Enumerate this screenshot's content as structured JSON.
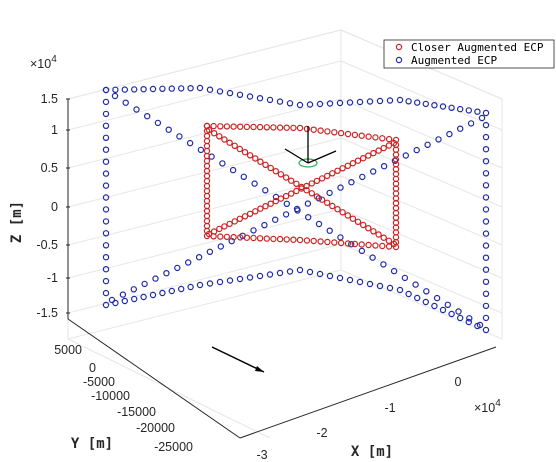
{
  "chart_data": {
    "type": "scatter",
    "projection": "3d",
    "xlabel": "X [m]",
    "ylabel": "Y [m]",
    "zlabel": "Z [m]",
    "x_multiplier": "×10",
    "x_multiplier_exp": "4",
    "z_multiplier": "×10",
    "z_multiplier_exp": "4",
    "xlim": [
      -3,
      1
    ],
    "ylim": [
      -28000,
      7000
    ],
    "zlim": [
      -1.7,
      1.7
    ],
    "x_ticks": [
      "-3",
      "-2",
      "-1",
      "0"
    ],
    "y_ticks": [
      "-25000",
      "-20000",
      "-15000",
      "-10000",
      "-5000",
      "0",
      "5000"
    ],
    "z_ticks": [
      "-1.5",
      "-1",
      "-0.5",
      "0",
      "0.5",
      "1",
      "1.5"
    ],
    "grid": true,
    "legend_position": "top-right",
    "series": [
      {
        "name": "Closer Augmented ECP",
        "color": "#cc2222",
        "marker": "circle-open",
        "x_range": [
          -1.3,
          -0.35
        ],
        "y_range": [
          -6000,
          -3000
        ],
        "z_range": [
          -0.55,
          1.15
        ],
        "shape": "rectangle loop with both diagonals"
      },
      {
        "name": "Augmented ECP",
        "color": "#1f2aa8",
        "marker": "circle-open",
        "x_range": [
          -2.5,
          1.0
        ],
        "y_range": [
          -14000,
          4500
        ],
        "z_range": [
          -1.6,
          1.6
        ],
        "shape": "rectangle loop with both diagonals"
      }
    ]
  }
}
